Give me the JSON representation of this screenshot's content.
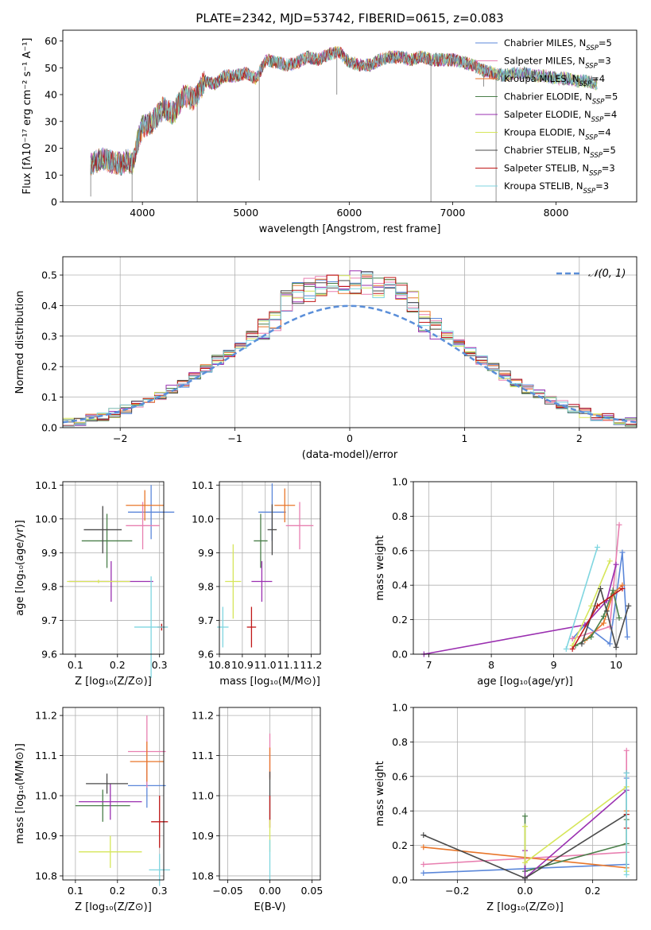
{
  "title": "PLATE=2342, MJD=53742, FIBERID=0615, z=0.083",
  "colors": {
    "Chabrier MILES": "#5b87d9",
    "Salpeter MILES": "#e87fb0",
    "Kroupa MILES": "#e8762a",
    "Chabrier ELODIE": "#4a7f4a",
    "Salpeter ELODIE": "#9a2fb0",
    "Kroupa ELODIE": "#d6e65a",
    "Chabrier STELIB": "#4a4a4a",
    "Salpeter STELIB": "#c01818",
    "Kroupa STELIB": "#7fd6e0"
  },
  "chart_data": [
    {
      "id": "spectrum",
      "type": "line",
      "title": "PLATE=2342, MJD=53742, FIBERID=0615, z=0.083",
      "xlabel": "wavelength [Angstrom, rest frame]",
      "ylabel": "Flux [fλ10⁻¹⁷ erg cm⁻² s⁻¹ A⁻¹]",
      "xlim": [
        3230,
        8780
      ],
      "ylim": [
        0,
        64
      ],
      "xticks": [
        4000,
        5000,
        6000,
        7000,
        8000
      ],
      "yticks": [
        0,
        10,
        20,
        30,
        40,
        50,
        60
      ],
      "grid": false,
      "legend_position": "upper right",
      "series": [
        {
          "name": "Chabrier MILES, N",
          "sub": "SSP",
          "suffix": "=5"
        },
        {
          "name": "Salpeter MILES, N",
          "sub": "SSP",
          "suffix": "=3"
        },
        {
          "name": "Kroupa MILES, N",
          "sub": "SSP",
          "suffix": "=4"
        },
        {
          "name": "Chabrier ELODIE, N",
          "sub": "SSP",
          "suffix": "=5"
        },
        {
          "name": "Salpeter ELODIE, N",
          "sub": "SSP",
          "suffix": "=4"
        },
        {
          "name": "Kroupa ELODIE, N",
          "sub": "SSP",
          "suffix": "=4"
        },
        {
          "name": "Chabrier STELIB, N",
          "sub": "SSP",
          "suffix": "=5"
        },
        {
          "name": "Salpeter STELIB, N",
          "sub": "SSP",
          "suffix": "=3"
        },
        {
          "name": "Kroupa STELIB, N",
          "sub": "SSP",
          "suffix": "=3"
        }
      ],
      "flux_envelope": {
        "x": [
          3500,
          3600,
          3700,
          3800,
          3850,
          3900,
          3950,
          4000,
          4100,
          4200,
          4300,
          4400,
          4500,
          4600,
          4700,
          4800,
          4900,
          5000,
          5100,
          5200,
          5300,
          5400,
          5500,
          5600,
          5700,
          5800,
          5900,
          6000,
          6100,
          6200,
          6300,
          6400,
          6500,
          6600,
          6700,
          6800,
          6900,
          7000,
          7100,
          7200,
          7300,
          7400,
          7500,
          7600,
          7700,
          7800,
          7900,
          8000,
          8100,
          8200,
          8300,
          8400,
          8500
        ],
        "y": [
          14,
          16,
          15,
          14,
          16,
          14,
          22,
          28,
          30,
          35,
          33,
          40,
          38,
          45,
          44,
          47,
          47,
          48,
          46,
          53,
          52,
          51,
          52,
          54,
          53,
          55,
          56,
          52,
          51,
          51,
          53,
          54,
          54,
          53,
          54,
          53,
          53,
          53,
          52,
          51,
          49,
          48,
          47,
          48,
          48,
          47,
          47,
          46,
          46,
          45,
          45,
          44,
          43
        ]
      },
      "dips": [
        {
          "x": 3500,
          "y": 2
        },
        {
          "x": 3900,
          "y": 0
        },
        {
          "x": 4530,
          "y": 0
        },
        {
          "x": 5130,
          "y": 8
        },
        {
          "x": 5880,
          "y": 40
        },
        {
          "x": 6790,
          "y": 0
        },
        {
          "x": 7420,
          "y": 0
        },
        {
          "x": 7300,
          "y": 43
        }
      ]
    },
    {
      "id": "residuals",
      "type": "histogram",
      "xlabel": "(data-model)/error",
      "ylabel": "Normed distribution",
      "xlim": [
        -2.5,
        2.5
      ],
      "ylim": [
        0,
        0.56
      ],
      "xticks": [
        -2,
        -1,
        0,
        1,
        2
      ],
      "yticks": [
        0.0,
        0.1,
        0.2,
        0.3,
        0.4,
        0.5
      ],
      "grid": true,
      "legend_position": "upper right",
      "legend_label": "𝒩(0, 1)",
      "gaussian": {
        "mu": 0,
        "sigma": 1
      }
    },
    {
      "id": "age_vs_Z",
      "type": "scatter",
      "xlabel": "Z [log₁₀(Z/Z⊙)]",
      "ylabel": "age  [log₁₀(age/yr)]",
      "xlim": [
        0.07,
        0.31
      ],
      "ylim": [
        9.6,
        10.11
      ],
      "xticks": [
        0.1,
        0.2,
        0.3
      ],
      "yticks": [
        9.6,
        9.7,
        9.8,
        9.9,
        10.0,
        10.1
      ],
      "grid": true,
      "points": [
        {
          "model": "Chabrier MILES",
          "x": 0.28,
          "y": 10.02,
          "xerr": 0.055,
          "yerr": 0.08
        },
        {
          "model": "Salpeter MILES",
          "x": 0.26,
          "y": 9.98,
          "xerr": 0.04,
          "yerr": 0.07
        },
        {
          "model": "Kroupa MILES",
          "x": 0.265,
          "y": 10.04,
          "xerr": 0.045,
          "yerr": 0.045
        },
        {
          "model": "Chabrier ELODIE",
          "x": 0.175,
          "y": 9.935,
          "xerr": 0.06,
          "yerr": 0.08
        },
        {
          "model": "Salpeter ELODIE",
          "x": 0.185,
          "y": 9.815,
          "xerr": 0.1,
          "yerr": 0.06
        },
        {
          "model": "Kroupa ELODIE",
          "x": 0.155,
          "y": 9.815,
          "xerr": 0.075,
          "yerr": 0.005
        },
        {
          "model": "Chabrier STELIB",
          "x": 0.165,
          "y": 9.968,
          "xerr": 0.045,
          "yerr": 0.07
        },
        {
          "model": "Salpeter STELIB",
          "x": 0.305,
          "y": 9.68,
          "xerr": 0.01,
          "yerr": 0.01
        },
        {
          "model": "Kroupa STELIB",
          "x": 0.28,
          "y": 9.68,
          "xerr": 0.04,
          "yerr": 0.15
        }
      ]
    },
    {
      "id": "age_vs_mass",
      "type": "scatter",
      "xlabel": "mass [log₁₀(M/M⊙)]",
      "ylabel": "",
      "xlim": [
        10.8,
        11.24
      ],
      "ylim": [
        9.6,
        10.11
      ],
      "xticks": [
        10.8,
        10.9,
        11.0,
        11.1,
        11.2
      ],
      "yticks": [
        9.6,
        9.7,
        9.8,
        9.9,
        10.0,
        10.1
      ],
      "grid": true,
      "points": [
        {
          "model": "Chabrier MILES",
          "x": 11.03,
          "y": 10.02,
          "xerr": 0.06,
          "yerr": 0.085
        },
        {
          "model": "Salpeter MILES",
          "x": 11.15,
          "y": 9.98,
          "xerr": 0.06,
          "yerr": 0.07
        },
        {
          "model": "Kroupa MILES",
          "x": 11.085,
          "y": 10.04,
          "xerr": 0.045,
          "yerr": 0.05
        },
        {
          "model": "Chabrier ELODIE",
          "x": 10.98,
          "y": 9.935,
          "xerr": 0.03,
          "yerr": 0.08
        },
        {
          "model": "Salpeter ELODIE",
          "x": 10.985,
          "y": 9.815,
          "xerr": 0.045,
          "yerr": 0.06
        },
        {
          "model": "Kroupa ELODIE",
          "x": 10.86,
          "y": 9.815,
          "xerr": 0.035,
          "yerr": 0.11
        },
        {
          "model": "Chabrier STELIB",
          "x": 11.03,
          "y": 9.968,
          "xerr": 0.02,
          "yerr": 0.075
        },
        {
          "model": "Salpeter STELIB",
          "x": 10.94,
          "y": 9.68,
          "xerr": 0.02,
          "yerr": 0.06
        },
        {
          "model": "Kroupa STELIB",
          "x": 10.815,
          "y": 9.68,
          "xerr": 0.025,
          "yerr": 0.06
        }
      ]
    },
    {
      "id": "mass_weight_vs_age",
      "type": "line",
      "xlabel": "age  [log₁₀(age/yr)]",
      "ylabel": "mass weight",
      "xlim": [
        6.75,
        10.33
      ],
      "ylim": [
        0,
        1.0
      ],
      "xticks": [
        7,
        8,
        9,
        10
      ],
      "yticks": [
        0.0,
        0.2,
        0.4,
        0.6,
        0.8,
        1.0
      ],
      "grid": true,
      "series": [
        {
          "model": "Chabrier MILES",
          "x": [
            9.3,
            9.5,
            9.9,
            10.1,
            10.18
          ],
          "y": [
            0.09,
            0.17,
            0.06,
            0.59,
            0.1
          ]
        },
        {
          "model": "Salpeter MILES",
          "x": [
            9.3,
            9.9,
            10.05
          ],
          "y": [
            0.09,
            0.16,
            0.75
          ]
        },
        {
          "model": "Kroupa MILES",
          "x": [
            9.5,
            9.8,
            9.95,
            10.1
          ],
          "y": [
            0.08,
            0.18,
            0.35,
            0.4
          ]
        },
        {
          "model": "Chabrier ELODIE",
          "x": [
            9.35,
            9.6,
            9.8,
            9.95,
            10.05
          ],
          "y": [
            0.05,
            0.1,
            0.22,
            0.37,
            0.21
          ]
        },
        {
          "model": "Salpeter ELODIE",
          "x": [
            6.92,
            9.5,
            9.85,
            10.0
          ],
          "y": [
            0.0,
            0.17,
            0.31,
            0.52
          ]
        },
        {
          "model": "Kroupa ELODIE",
          "x": [
            9.3,
            9.6,
            9.9
          ],
          "y": [
            0.05,
            0.28,
            0.54
          ]
        },
        {
          "model": "Chabrier STELIB",
          "x": [
            9.45,
            9.75,
            9.85,
            10.0,
            10.2
          ],
          "y": [
            0.06,
            0.38,
            0.25,
            0.04,
            0.28
          ]
        },
        {
          "model": "Salpeter STELIB",
          "x": [
            9.3,
            9.7,
            10.1
          ],
          "y": [
            0.03,
            0.28,
            0.38
          ]
        },
        {
          "model": "Kroupa STELIB",
          "x": [
            9.2,
            9.7
          ],
          "y": [
            0.03,
            0.62
          ]
        }
      ]
    },
    {
      "id": "mass_vs_Z",
      "type": "scatter",
      "xlabel": "Z [log₁₀(Z/Z⊙)]",
      "ylabel": "mass [log₁₀(M/M⊙)]",
      "xlim": [
        0.07,
        0.31
      ],
      "ylim": [
        10.79,
        11.22
      ],
      "xticks": [
        0.1,
        0.2,
        0.3
      ],
      "yticks": [
        10.8,
        10.9,
        11.0,
        11.1,
        11.2
      ],
      "grid": true,
      "points": [
        {
          "model": "Chabrier MILES",
          "x": 0.27,
          "y": 11.025,
          "xerr": 0.045,
          "yerr": 0.055
        },
        {
          "model": "Salpeter MILES",
          "x": 0.27,
          "y": 11.11,
          "xerr": 0.045,
          "yerr": 0.09
        },
        {
          "model": "Kroupa MILES",
          "x": 0.27,
          "y": 11.085,
          "xerr": 0.04,
          "yerr": 0.05
        },
        {
          "model": "Chabrier ELODIE",
          "x": 0.165,
          "y": 10.975,
          "xerr": 0.065,
          "yerr": 0.04
        },
        {
          "model": "Salpeter ELODIE",
          "x": 0.183,
          "y": 10.985,
          "xerr": 0.075,
          "yerr": 0.045
        },
        {
          "model": "Kroupa ELODIE",
          "x": 0.183,
          "y": 10.86,
          "xerr": 0.075,
          "yerr": 0.04
        },
        {
          "model": "Chabrier STELIB",
          "x": 0.175,
          "y": 11.03,
          "xerr": 0.05,
          "yerr": 0.025
        },
        {
          "model": "Salpeter STELIB",
          "x": 0.3,
          "y": 10.935,
          "xerr": 0.02,
          "yerr": 0.065
        },
        {
          "model": "Kroupa STELIB",
          "x": 0.3,
          "y": 10.815,
          "xerr": 0.025,
          "yerr": 0.04
        }
      ]
    },
    {
      "id": "mass_vs_EBV",
      "type": "scatter",
      "xlabel": "E(B-V)",
      "ylabel": "",
      "xlim": [
        -0.06,
        0.06
      ],
      "ylim": [
        10.79,
        11.22
      ],
      "xticks": [
        -0.05,
        0.0,
        0.05
      ],
      "ytick_labels": [
        10.8,
        10.9,
        11.0,
        11.1,
        11.2
      ],
      "grid": true,
      "points": [
        {
          "model": "Salpeter MILES",
          "x": 0.0,
          "y": 11.1,
          "xerr": 0,
          "yerr": 0.055
        },
        {
          "model": "Kroupa MILES",
          "x": 0.0,
          "y": 11.08,
          "xerr": 0,
          "yerr": 0.04
        },
        {
          "model": "Chabrier STELIB",
          "x": 0.0,
          "y": 11.0,
          "xerr": 0,
          "yerr": 0.06
        },
        {
          "model": "Salpeter STELIB",
          "x": 0.0,
          "y": 10.96,
          "xerr": 0,
          "yerr": 0.04
        },
        {
          "model": "Kroupa ELODIE",
          "x": 0.0,
          "y": 10.9,
          "xerr": 0,
          "yerr": 0.04
        },
        {
          "model": "Kroupa STELIB",
          "x": 0.0,
          "y": 10.84,
          "xerr": 0,
          "yerr": 0.05
        }
      ]
    },
    {
      "id": "mass_weight_vs_Z",
      "type": "line",
      "xlabel": "Z [log₁₀(Z/Z⊙)]",
      "ylabel": "mass weight",
      "xlim": [
        -0.33,
        0.33
      ],
      "ylim": [
        0,
        1.0
      ],
      "xticks": [
        -0.2,
        0.0,
        0.2
      ],
      "yticks": [
        0.0,
        0.2,
        0.4,
        0.6,
        0.8,
        1.0
      ],
      "grid": true,
      "series": [
        {
          "model": "Chabrier MILES",
          "x": [
            -0.3,
            0.3,
            0.3
          ],
          "y": [
            0.04,
            0.09,
            0.59
          ]
        },
        {
          "model": "Salpeter MILES",
          "x": [
            -0.3,
            0.3,
            0.3
          ],
          "y": [
            0.09,
            0.16,
            0.75
          ]
        },
        {
          "model": "Kroupa MILES",
          "x": [
            -0.3,
            0.3,
            0.3
          ],
          "y": [
            0.19,
            0.07,
            0.4
          ]
        },
        {
          "model": "Chabrier ELODIE",
          "x": [
            0.0,
            0.0,
            0.3,
            0.3
          ],
          "y": [
            0.37,
            0.05,
            0.21,
            0.35
          ]
        },
        {
          "model": "Salpeter ELODIE",
          "x": [
            0.0,
            0.0,
            0.3
          ],
          "y": [
            0.17,
            0.01,
            0.52
          ]
        },
        {
          "model": "Kroupa ELODIE",
          "x": [
            0.0,
            0.0,
            0.3,
            0.3
          ],
          "y": [
            0.31,
            0.1,
            0.54,
            0.05
          ]
        },
        {
          "model": "Chabrier STELIB",
          "x": [
            -0.3,
            0.0,
            0.3,
            0.3
          ],
          "y": [
            0.26,
            0.01,
            0.38,
            0.62
          ]
        },
        {
          "model": "Salpeter STELIB",
          "x": [
            0.3,
            0.3
          ],
          "y": [
            0.3,
            0.38
          ]
        },
        {
          "model": "Kroupa STELIB",
          "x": [
            0.3,
            0.3
          ],
          "y": [
            0.03,
            0.62
          ]
        }
      ]
    }
  ]
}
